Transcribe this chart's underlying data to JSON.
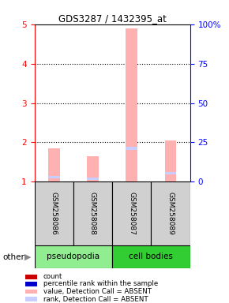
{
  "title": "GDS3287 / 1432395_at",
  "samples": [
    "GSM258086",
    "GSM258088",
    "GSM258087",
    "GSM258089"
  ],
  "bar_values": [
    1.85,
    1.65,
    4.9,
    2.05
  ],
  "rank_markers": [
    1.12,
    1.08,
    1.85,
    1.22
  ],
  "bar_color_absent": "#ffb0b0",
  "rank_color_absent": "#c8ceff",
  "ylim_left": [
    1,
    5
  ],
  "ylim_right": [
    0,
    100
  ],
  "yticks_left": [
    1,
    2,
    3,
    4,
    5
  ],
  "yticks_right": [
    0,
    25,
    50,
    75,
    100
  ],
  "ytick_labels_left": [
    "1",
    "2",
    "3",
    "4",
    "5"
  ],
  "ytick_labels_right": [
    "0",
    "25",
    "50",
    "75",
    "100%"
  ],
  "sample_bg_color": "#d0d0d0",
  "pseudopodia_color": "#90ee90",
  "cell_bodies_color": "#32cd32",
  "legend_items": [
    {
      "color": "#cc0000",
      "label": "count"
    },
    {
      "color": "#0000cc",
      "label": "percentile rank within the sample"
    },
    {
      "color": "#ffb0b0",
      "label": "value, Detection Call = ABSENT"
    },
    {
      "color": "#c8ceff",
      "label": "rank, Detection Call = ABSENT"
    }
  ],
  "other_label": "other",
  "bar_width": 0.3
}
